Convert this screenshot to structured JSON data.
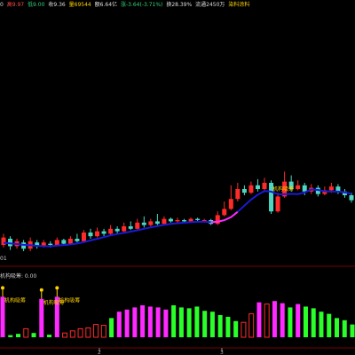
{
  "infobar": {
    "open_tail": "0",
    "high": "高9.97",
    "low": "低9.00",
    "prev": "收9.36",
    "volume": "量69544",
    "amount": "额6.64亿",
    "change": "涨-3.64(-3.71%)",
    "turnover": "换28.39%",
    "float": "流通2450万",
    "link": "染料涂料"
  },
  "colors": {
    "background": "#000000",
    "up": "#ff2a2a",
    "down": "#4dd6c2",
    "ma_line": "#1a1ad6",
    "ma_highlight": "#ff2aff",
    "vol_magenta": "#ff2aff",
    "vol_green": "#2aff2a",
    "label_yellow": "#ffd200"
  },
  "chart_data": [
    {
      "type": "candlestick",
      "title": "",
      "axis_label": "01",
      "annotation": "机构吸筹",
      "candles": [
        {
          "o": 0.1,
          "c": 0.16,
          "h": 0.19,
          "l": 0.08
        },
        {
          "o": 0.15,
          "c": 0.09,
          "h": 0.17,
          "l": 0.06
        },
        {
          "o": 0.09,
          "c": 0.13,
          "h": 0.15,
          "l": 0.07
        },
        {
          "o": 0.12,
          "c": 0.07,
          "h": 0.14,
          "l": 0.05
        },
        {
          "o": 0.07,
          "c": 0.13,
          "h": 0.16,
          "l": 0.05
        },
        {
          "o": 0.12,
          "c": 0.09,
          "h": 0.14,
          "l": 0.07
        },
        {
          "o": 0.09,
          "c": 0.12,
          "h": 0.14,
          "l": 0.08
        },
        {
          "o": 0.11,
          "c": 0.1,
          "h": 0.13,
          "l": 0.08
        },
        {
          "o": 0.1,
          "c": 0.14,
          "h": 0.16,
          "l": 0.09
        },
        {
          "o": 0.14,
          "c": 0.11,
          "h": 0.15,
          "l": 0.1
        },
        {
          "o": 0.11,
          "c": 0.15,
          "h": 0.17,
          "l": 0.1
        },
        {
          "o": 0.15,
          "c": 0.13,
          "h": 0.19,
          "l": 0.12
        },
        {
          "o": 0.13,
          "c": 0.2,
          "h": 0.22,
          "l": 0.12
        },
        {
          "o": 0.2,
          "c": 0.17,
          "h": 0.23,
          "l": 0.15
        },
        {
          "o": 0.17,
          "c": 0.21,
          "h": 0.24,
          "l": 0.16
        },
        {
          "o": 0.21,
          "c": 0.19,
          "h": 0.23,
          "l": 0.17
        },
        {
          "o": 0.19,
          "c": 0.23,
          "h": 0.26,
          "l": 0.18
        },
        {
          "o": 0.23,
          "c": 0.21,
          "h": 0.25,
          "l": 0.19
        },
        {
          "o": 0.21,
          "c": 0.25,
          "h": 0.28,
          "l": 0.2
        },
        {
          "o": 0.25,
          "c": 0.23,
          "h": 0.29,
          "l": 0.22
        },
        {
          "o": 0.23,
          "c": 0.28,
          "h": 0.31,
          "l": 0.22
        },
        {
          "o": 0.28,
          "c": 0.26,
          "h": 0.33,
          "l": 0.24
        },
        {
          "o": 0.26,
          "c": 0.29,
          "h": 0.31,
          "l": 0.25
        },
        {
          "o": 0.29,
          "c": 0.27,
          "h": 0.35,
          "l": 0.26
        },
        {
          "o": 0.27,
          "c": 0.31,
          "h": 0.33,
          "l": 0.26
        },
        {
          "o": 0.31,
          "c": 0.29,
          "h": 0.32,
          "l": 0.28
        },
        {
          "o": 0.29,
          "c": 0.3,
          "h": 0.32,
          "l": 0.28
        },
        {
          "o": 0.3,
          "c": 0.29,
          "h": 0.31,
          "l": 0.28
        },
        {
          "o": 0.29,
          "c": 0.31,
          "h": 0.32,
          "l": 0.28
        },
        {
          "o": 0.31,
          "c": 0.3,
          "h": 0.32,
          "l": 0.29
        },
        {
          "o": 0.3,
          "c": 0.3,
          "h": 0.31,
          "l": 0.29
        },
        {
          "o": 0.3,
          "c": 0.27,
          "h": 0.31,
          "l": 0.26
        },
        {
          "o": 0.27,
          "c": 0.34,
          "h": 0.37,
          "l": 0.26
        },
        {
          "o": 0.34,
          "c": 0.39,
          "h": 0.45,
          "l": 0.33
        },
        {
          "o": 0.39,
          "c": 0.47,
          "h": 0.58,
          "l": 0.38
        },
        {
          "o": 0.47,
          "c": 0.55,
          "h": 0.6,
          "l": 0.45
        },
        {
          "o": 0.55,
          "c": 0.52,
          "h": 0.58,
          "l": 0.5
        },
        {
          "o": 0.52,
          "c": 0.58,
          "h": 0.61,
          "l": 0.51
        },
        {
          "o": 0.58,
          "c": 0.55,
          "h": 0.63,
          "l": 0.53
        },
        {
          "o": 0.55,
          "c": 0.6,
          "h": 0.64,
          "l": 0.54
        },
        {
          "o": 0.6,
          "c": 0.37,
          "h": 0.62,
          "l": 0.35
        },
        {
          "o": 0.37,
          "c": 0.49,
          "h": 0.52,
          "l": 0.36
        },
        {
          "o": 0.49,
          "c": 0.61,
          "h": 0.69,
          "l": 0.48
        },
        {
          "o": 0.61,
          "c": 0.55,
          "h": 0.66,
          "l": 0.53
        },
        {
          "o": 0.55,
          "c": 0.58,
          "h": 0.62,
          "l": 0.54
        },
        {
          "o": 0.58,
          "c": 0.53,
          "h": 0.6,
          "l": 0.5
        },
        {
          "o": 0.53,
          "c": 0.56,
          "h": 0.59,
          "l": 0.51
        },
        {
          "o": 0.56,
          "c": 0.51,
          "h": 0.58,
          "l": 0.49
        },
        {
          "o": 0.51,
          "c": 0.54,
          "h": 0.57,
          "l": 0.5
        },
        {
          "o": 0.54,
          "c": 0.57,
          "h": 0.6,
          "l": 0.52
        },
        {
          "o": 0.57,
          "c": 0.53,
          "h": 0.59,
          "l": 0.51
        },
        {
          "o": 0.53,
          "c": 0.5,
          "h": 0.55,
          "l": 0.48
        },
        {
          "o": 0.5,
          "c": 0.46,
          "h": 0.52,
          "l": 0.44
        }
      ]
    },
    {
      "type": "bar",
      "title": "",
      "label": "机构吸筹: 0.00",
      "signal_label": "机构吸筹",
      "values": [
        {
          "v": 0.95,
          "c": "vol_magenta"
        },
        {
          "v": 0.05,
          "c": "vol_green"
        },
        {
          "v": 0.08,
          "c": "vol_green"
        },
        {
          "v": 0.2,
          "c": "up"
        },
        {
          "v": 0.1,
          "c": "vol_green"
        },
        {
          "v": 0.9,
          "c": "vol_magenta"
        },
        {
          "v": 0.06,
          "c": "vol_green"
        },
        {
          "v": 0.95,
          "c": "vol_magenta"
        },
        {
          "v": 0.1,
          "c": "up"
        },
        {
          "v": 0.15,
          "c": "up"
        },
        {
          "v": 0.2,
          "c": "up"
        },
        {
          "v": 0.22,
          "c": "up"
        },
        {
          "v": 0.3,
          "c": "up"
        },
        {
          "v": 0.28,
          "c": "up"
        },
        {
          "v": 0.45,
          "c": "vol_green"
        },
        {
          "v": 0.6,
          "c": "vol_magenta"
        },
        {
          "v": 0.65,
          "c": "vol_magenta"
        },
        {
          "v": 0.7,
          "c": "vol_magenta"
        },
        {
          "v": 0.75,
          "c": "vol_magenta"
        },
        {
          "v": 0.72,
          "c": "vol_magenta"
        },
        {
          "v": 0.7,
          "c": "vol_magenta"
        },
        {
          "v": 0.65,
          "c": "vol_magenta"
        },
        {
          "v": 0.75,
          "c": "vol_green"
        },
        {
          "v": 0.7,
          "c": "vol_green"
        },
        {
          "v": 0.68,
          "c": "vol_green"
        },
        {
          "v": 0.72,
          "c": "vol_green"
        },
        {
          "v": 0.62,
          "c": "vol_green"
        },
        {
          "v": 0.6,
          "c": "vol_green"
        },
        {
          "v": 0.52,
          "c": "vol_green"
        },
        {
          "v": 0.48,
          "c": "vol_green"
        },
        {
          "v": 0.38,
          "c": "vol_green"
        },
        {
          "v": 0.35,
          "c": "up"
        },
        {
          "v": 0.55,
          "c": "up"
        },
        {
          "v": 0.82,
          "c": "vol_magenta"
        },
        {
          "v": 0.78,
          "c": "up"
        },
        {
          "v": 0.85,
          "c": "vol_magenta"
        },
        {
          "v": 0.8,
          "c": "vol_magenta"
        },
        {
          "v": 0.7,
          "c": "vol_green"
        },
        {
          "v": 0.78,
          "c": "vol_magenta"
        },
        {
          "v": 0.72,
          "c": "vol_green"
        },
        {
          "v": 0.68,
          "c": "vol_green"
        },
        {
          "v": 0.6,
          "c": "vol_green"
        },
        {
          "v": 0.55,
          "c": "vol_green"
        },
        {
          "v": 0.45,
          "c": "vol_green"
        },
        {
          "v": 0.4,
          "c": "vol_green"
        },
        {
          "v": 0.3,
          "c": "vol_green"
        }
      ],
      "signals": [
        0,
        5,
        7
      ],
      "x_ticks": [
        "2",
        "3"
      ]
    }
  ]
}
